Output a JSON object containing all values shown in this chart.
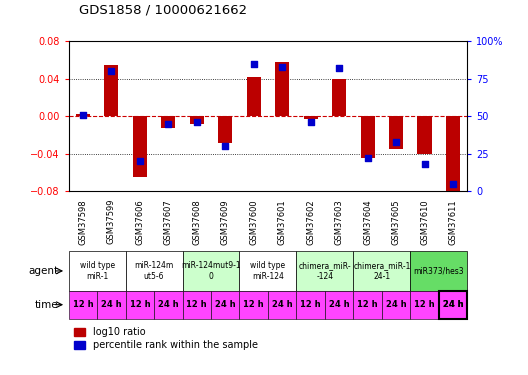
{
  "title": "GDS1858 / 10000621662",
  "samples": [
    "GSM37598",
    "GSM37599",
    "GSM37606",
    "GSM37607",
    "GSM37608",
    "GSM37609",
    "GSM37600",
    "GSM37601",
    "GSM37602",
    "GSM37603",
    "GSM37604",
    "GSM37605",
    "GSM37610",
    "GSM37611"
  ],
  "log10_ratio": [
    0.002,
    0.055,
    -0.065,
    -0.012,
    -0.008,
    -0.028,
    0.042,
    0.058,
    -0.003,
    0.04,
    -0.045,
    -0.035,
    -0.04,
    -0.08
  ],
  "percentile_rank": [
    51,
    80,
    20,
    45,
    46,
    30,
    85,
    83,
    46,
    82,
    22,
    33,
    18,
    5
  ],
  "agent_groups": [
    {
      "label": "wild type\nmiR-1",
      "start": 0,
      "end": 2,
      "color": "#ffffff"
    },
    {
      "label": "miR-124m\nut5-6",
      "start": 2,
      "end": 4,
      "color": "#ffffff"
    },
    {
      "label": "miR-124mut9-1\n0",
      "start": 4,
      "end": 6,
      "color": "#ccffcc"
    },
    {
      "label": "wild type\nmiR-124",
      "start": 6,
      "end": 8,
      "color": "#ffffff"
    },
    {
      "label": "chimera_miR-\n-124",
      "start": 8,
      "end": 10,
      "color": "#ccffcc"
    },
    {
      "label": "chimera_miR-1\n24-1",
      "start": 10,
      "end": 12,
      "color": "#ccffcc"
    },
    {
      "label": "miR373/hes3",
      "start": 12,
      "end": 14,
      "color": "#66dd66"
    }
  ],
  "bar_color": "#bb0000",
  "dot_color": "#0000cc",
  "ylim": [
    -0.08,
    0.08
  ],
  "ylim_right": [
    0,
    100
  ],
  "yticks_left": [
    -0.08,
    -0.04,
    0.0,
    0.04,
    0.08
  ],
  "yticks_right": [
    0,
    25,
    50,
    75,
    100
  ],
  "hline_color": "#cc0000",
  "bg_color": "#ffffff",
  "time_bg": "#ff44ff",
  "legend_labels": [
    "log10 ratio",
    "percentile rank within the sample"
  ]
}
